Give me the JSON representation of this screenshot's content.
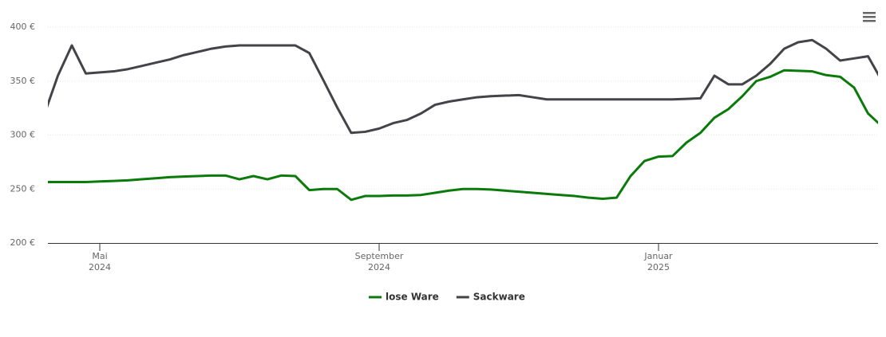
{
  "chart_data": {
    "type": "line",
    "categories": [
      null,
      null,
      null,
      null,
      "Mai\n2024",
      null,
      null,
      null,
      null,
      null,
      null,
      null,
      null,
      null,
      null,
      null,
      null,
      null,
      null,
      null,
      null,
      null,
      null,
      null,
      "September\n2024",
      null,
      null,
      null,
      null,
      null,
      null,
      null,
      null,
      null,
      null,
      null,
      null,
      null,
      null,
      null,
      null,
      null,
      null,
      null,
      "Januar\n2025",
      null,
      null,
      null,
      null,
      null,
      null,
      null,
      null,
      null,
      null,
      null,
      null,
      null,
      null,
      null,
      null
    ],
    "series": [
      {
        "name": "lose Ware",
        "color": "#0a7a0a",
        "values": [
          256.5,
          256.5,
          256.5,
          256.5,
          257,
          257.5,
          258,
          259,
          260,
          261,
          261.5,
          262,
          262.5,
          262.5,
          259,
          262,
          259,
          262.5,
          262,
          249,
          250,
          250,
          240,
          243.5,
          243.5,
          244,
          244,
          244.5,
          246.5,
          248.5,
          250,
          250,
          249.5,
          248.5,
          247.5,
          246.5,
          245.5,
          244.5,
          243.5,
          242,
          241,
          242,
          262,
          276,
          280,
          280.5,
          293,
          302,
          316,
          324,
          336,
          350,
          354,
          360,
          359.5,
          359,
          355.5,
          354,
          344,
          320,
          308
        ]
      },
      {
        "name": "Sackware",
        "color": "#434348",
        "values": [
          318,
          355,
          383,
          357,
          358,
          359,
          361,
          364,
          367,
          370,
          374,
          377,
          380,
          382,
          383,
          383,
          383,
          383,
          383,
          376,
          351,
          325.5,
          302,
          303,
          306,
          311,
          314,
          320,
          328,
          331,
          333,
          335,
          336,
          336.5,
          337,
          335,
          333,
          333,
          333,
          333,
          333,
          333,
          333,
          333,
          333,
          333,
          333.5,
          334,
          355,
          347,
          347,
          355,
          366,
          380,
          386,
          388,
          380,
          369,
          371,
          373,
          350
        ]
      }
    ],
    "ylim": [
      200,
      400
    ],
    "yticks": [
      {
        "value": 200,
        "label": "200 €"
      },
      {
        "value": 250,
        "label": "250 €"
      },
      {
        "value": 300,
        "label": "300 €"
      },
      {
        "value": 350,
        "label": "350 €"
      },
      {
        "value": 400,
        "label": "400 €"
      }
    ],
    "grid": true,
    "legend": "bottom"
  }
}
